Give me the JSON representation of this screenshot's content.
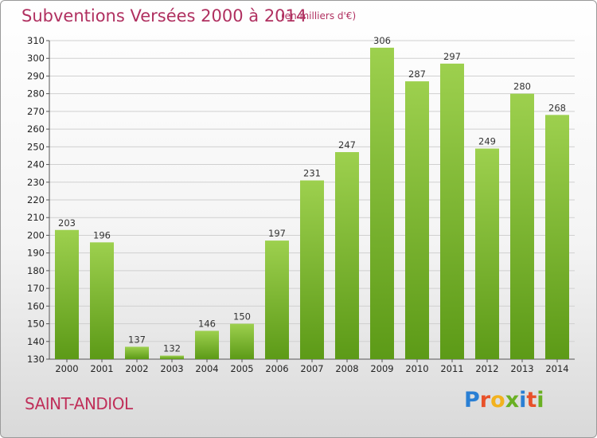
{
  "title": "Subventions Versées 2000 à 2014",
  "subtitle": "(en milliers d'€)",
  "commune": "SAINT-ANDIOL",
  "logo": {
    "letters": [
      "P",
      "r",
      "o",
      "x",
      "i",
      "t",
      "i"
    ],
    "colors": [
      "#2a7fd4",
      "#e8512a",
      "#f2b21e",
      "#6ab023",
      "#2a7fd4",
      "#e8512a",
      "#6ab023"
    ]
  },
  "colors": {
    "bar_top": "#9dd04e",
    "bar_bottom": "#5c9a17",
    "grid": "#d0d0d0",
    "title": "#b03060"
  },
  "chart_data": {
    "type": "bar",
    "categories": [
      "2000",
      "2001",
      "2002",
      "2003",
      "2004",
      "2005",
      "2006",
      "2007",
      "2008",
      "2009",
      "2010",
      "2011",
      "2012",
      "2013",
      "2014"
    ],
    "values": [
      203,
      196,
      137,
      132,
      146,
      150,
      197,
      231,
      247,
      306,
      287,
      297,
      249,
      280,
      268
    ],
    "ylim": [
      130,
      310
    ],
    "yticks": [
      130,
      140,
      150,
      160,
      170,
      180,
      190,
      200,
      210,
      220,
      230,
      240,
      250,
      260,
      270,
      280,
      290,
      300,
      310
    ],
    "grid": true,
    "xlabel": "",
    "ylabel": ""
  }
}
